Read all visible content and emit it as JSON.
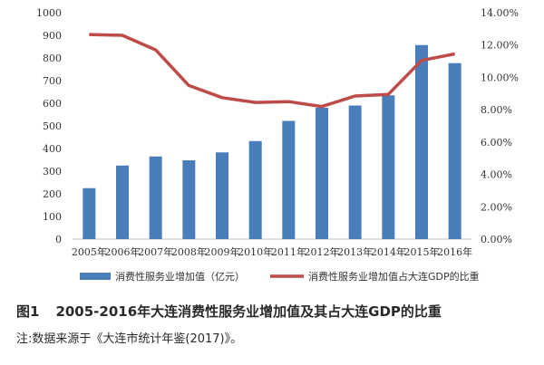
{
  "chart_data": {
    "type": "bar",
    "categories": [
      "2005年",
      "2006年",
      "2007年",
      "2008年",
      "2009年",
      "2010年",
      "2011年",
      "2012年",
      "2013年",
      "2014年",
      "2015年",
      "2016年"
    ],
    "series": [
      {
        "name": "消费性服务业增加值（亿元）",
        "kind": "bar",
        "axis": "left",
        "color": "#4a7ebb",
        "values": [
          225,
          325,
          365,
          348,
          383,
          433,
          522,
          580,
          590,
          635,
          857,
          777
        ]
      },
      {
        "name": "消费性服务业增加值占大连GDP的比重",
        "kind": "line",
        "axis": "right",
        "color": "#be4b48",
        "values": [
          12.65,
          12.6,
          11.7,
          9.5,
          8.75,
          8.45,
          8.5,
          8.2,
          8.85,
          8.95,
          11.05,
          11.45
        ]
      }
    ],
    "ylim": [
      0,
      1000
    ],
    "y_ticks": [
      "0",
      "100",
      "200",
      "300",
      "400",
      "500",
      "600",
      "700",
      "800",
      "900",
      "1000"
    ],
    "y2lim": [
      0,
      14
    ],
    "y2_ticks": [
      "0.00%",
      "2.00%",
      "4.00%",
      "6.00%",
      "8.00%",
      "10.00%",
      "12.00%",
      "14.00%"
    ],
    "legend_position": "bottom",
    "grid": false
  },
  "caption": {
    "label": "图1",
    "text": "2005-2016年大连消费性服务业增加值及其占大连GDP的比重"
  },
  "note": "注:数据来源于《大连市统计年鉴(2017)》。"
}
